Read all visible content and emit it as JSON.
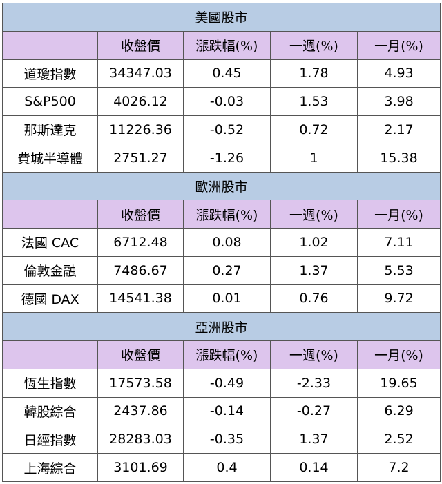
{
  "sections": [
    {
      "title": "美國股市",
      "headers": [
        "",
        "收盤價",
        "漲跌幅(%)",
        "一週(%)",
        "一月(%)"
      ],
      "rows": [
        [
          "道瓊指數",
          "34347.03",
          "0.45",
          "1.78",
          "4.93"
        ],
        [
          "S&P500",
          "4026.12",
          "-0.03",
          "1.53",
          "3.98"
        ],
        [
          "那斯達克",
          "11226.36",
          "-0.52",
          "0.72",
          "2.17"
        ],
        [
          "費城半導體",
          "2751.27",
          "-1.26",
          "1",
          "15.38"
        ]
      ]
    },
    {
      "title": "歐洲股市",
      "headers": [
        "",
        "收盤價",
        "漲跌幅(%)",
        "一週(%)",
        "一月(%)"
      ],
      "rows": [
        [
          "法國 CAC",
          "6712.48",
          "0.08",
          "1.02",
          "7.11"
        ],
        [
          "倫敦金融",
          "7486.67",
          "0.27",
          "1.37",
          "5.53"
        ],
        [
          "德國 DAX",
          "14541.38",
          "0.01",
          "0.76",
          "9.72"
        ]
      ]
    },
    {
      "title": "亞洲股市",
      "headers": [
        "",
        "收盤價",
        "漲跌幅(%)",
        "一週(%)",
        "一月(%)"
      ],
      "rows": [
        [
          "恆生指數",
          "17573.58",
          "-0.49",
          "-2.33",
          "19.65"
        ],
        [
          "韓股綜合",
          "2437.86",
          "-0.14",
          "-0.27",
          "6.29"
        ],
        [
          "日經指數",
          "28283.03",
          "-0.35",
          "1.37",
          "2.52"
        ],
        [
          "上海綜合",
          "3101.69",
          "0.4",
          "0.14",
          "7.2"
        ]
      ]
    }
  ],
  "colors": {
    "region_header_bg": "#b8cce4",
    "column_header_bg": "#ddc5ed",
    "border": "#555555"
  }
}
